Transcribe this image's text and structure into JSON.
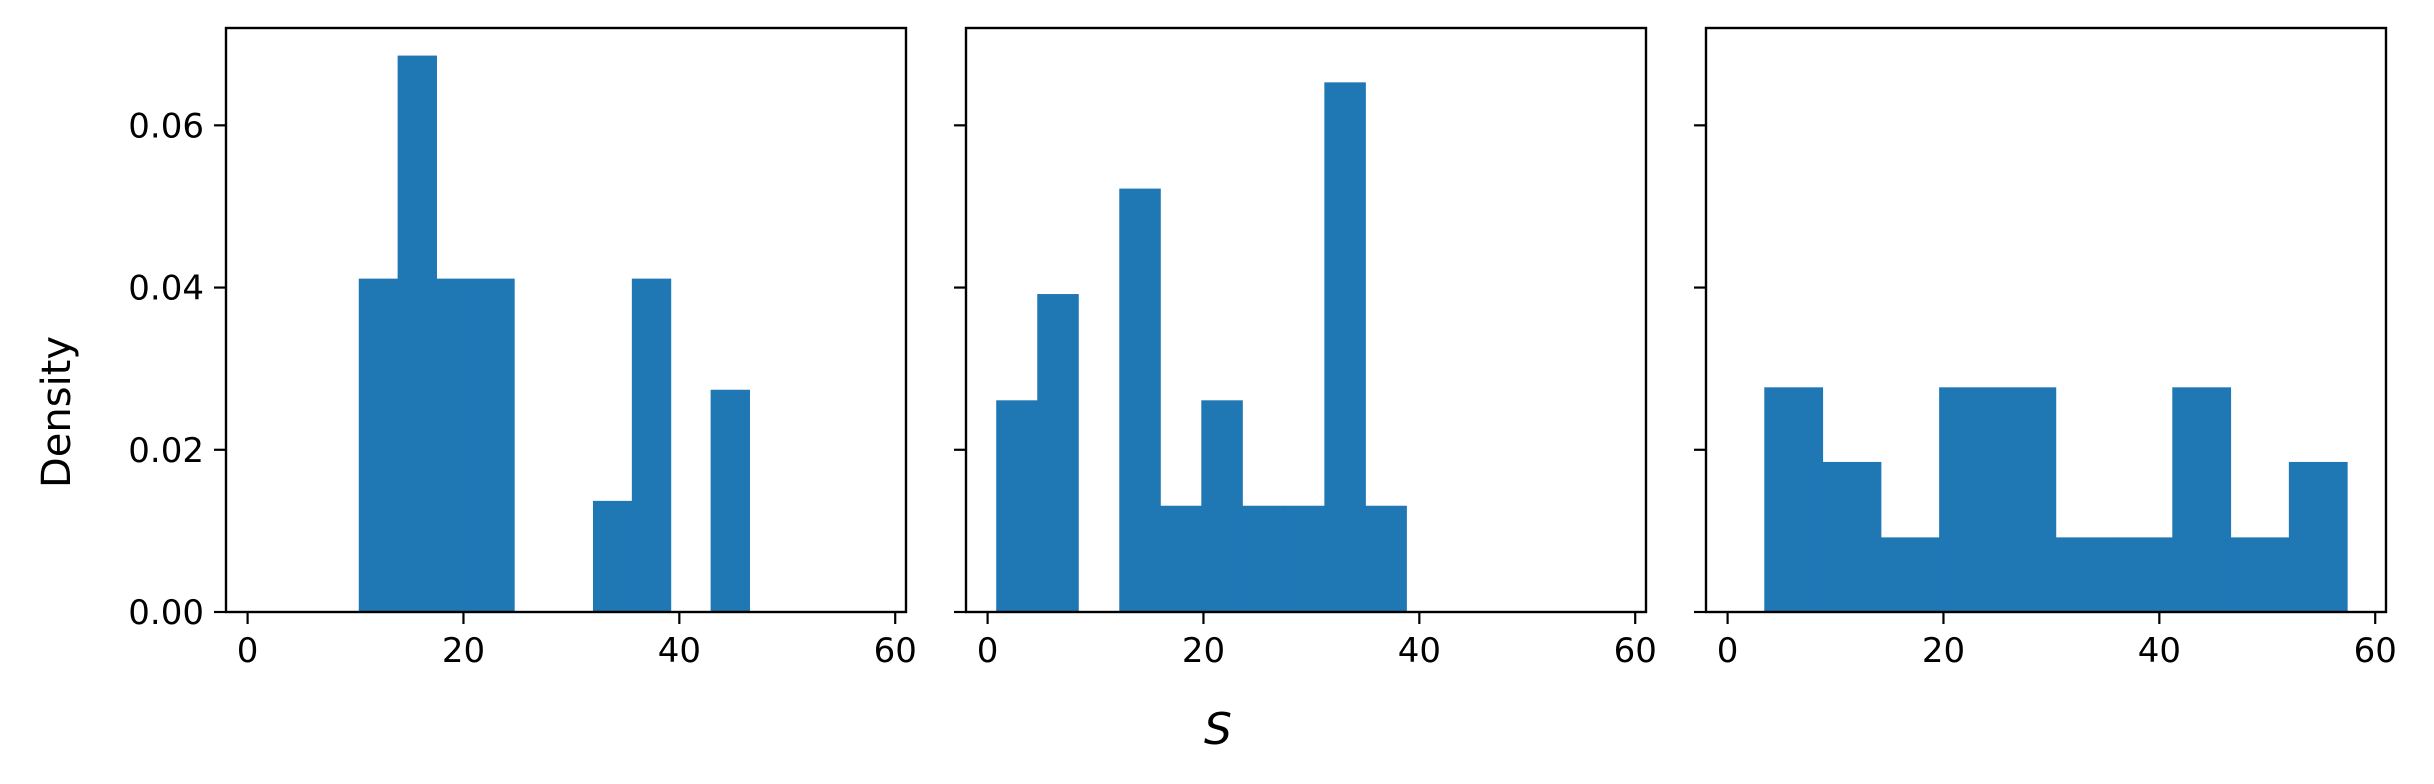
{
  "chart_data": [
    {
      "type": "histogram",
      "panel": 1,
      "xlim": [
        -2,
        61
      ],
      "ylim": [
        0,
        0.072
      ],
      "xticks": [
        "0",
        "20",
        "40",
        "60"
      ],
      "yticks": [
        "0.00",
        "0.02",
        "0.04",
        "0.06"
      ],
      "color": "#1f77b4",
      "bins": [
        {
          "x0": 10.3,
          "x1": 13.9,
          "density": 0.0411
        },
        {
          "x0": 13.9,
          "x1": 17.5,
          "density": 0.0686
        },
        {
          "x0": 17.5,
          "x1": 21.1,
          "density": 0.0411
        },
        {
          "x0": 21.1,
          "x1": 24.7,
          "density": 0.0411
        },
        {
          "x0": 32.0,
          "x1": 35.6,
          "density": 0.0137
        },
        {
          "x0": 35.6,
          "x1": 39.2,
          "density": 0.0411
        },
        {
          "x0": 42.9,
          "x1": 46.5,
          "density": 0.0274
        }
      ]
    },
    {
      "type": "histogram",
      "panel": 2,
      "xlim": [
        -2,
        61
      ],
      "ylim": [
        0,
        0.072
      ],
      "xticks": [
        "0",
        "20",
        "40",
        "60"
      ],
      "color": "#1f77b4",
      "bins": [
        {
          "x0": 0.8,
          "x1": 4.6,
          "density": 0.0261
        },
        {
          "x0": 4.6,
          "x1": 8.4,
          "density": 0.0392
        },
        {
          "x0": 12.2,
          "x1": 16.0,
          "density": 0.0522
        },
        {
          "x0": 16.0,
          "x1": 19.8,
          "density": 0.0131
        },
        {
          "x0": 19.8,
          "x1": 23.6,
          "density": 0.0261
        },
        {
          "x0": 23.6,
          "x1": 27.4,
          "density": 0.0131
        },
        {
          "x0": 27.4,
          "x1": 31.2,
          "density": 0.0131
        },
        {
          "x0": 31.2,
          "x1": 35.0,
          "density": 0.0653
        },
        {
          "x0": 35.0,
          "x1": 38.8,
          "density": 0.0131
        }
      ]
    },
    {
      "type": "histogram",
      "panel": 3,
      "xlim": [
        -2,
        61
      ],
      "ylim": [
        0,
        0.072
      ],
      "xticks": [
        "0",
        "20",
        "40",
        "60"
      ],
      "color": "#1f77b4",
      "bins": [
        {
          "x0": 3.4,
          "x1": 8.8,
          "density": 0.0277
        },
        {
          "x0": 8.8,
          "x1": 14.2,
          "density": 0.0185
        },
        {
          "x0": 14.2,
          "x1": 19.6,
          "density": 0.0092
        },
        {
          "x0": 19.6,
          "x1": 25.0,
          "density": 0.0277
        },
        {
          "x0": 25.0,
          "x1": 30.4,
          "density": 0.0277
        },
        {
          "x0": 30.4,
          "x1": 35.8,
          "density": 0.0092
        },
        {
          "x0": 35.8,
          "x1": 41.2,
          "density": 0.0092
        },
        {
          "x0": 41.2,
          "x1": 46.6,
          "density": 0.0277
        },
        {
          "x0": 46.6,
          "x1": 52.0,
          "density": 0.0092
        },
        {
          "x0": 52.0,
          "x1": 57.4,
          "density": 0.0185
        }
      ]
    }
  ],
  "labels": {
    "ylabel": "Density",
    "xlabel": "S"
  }
}
